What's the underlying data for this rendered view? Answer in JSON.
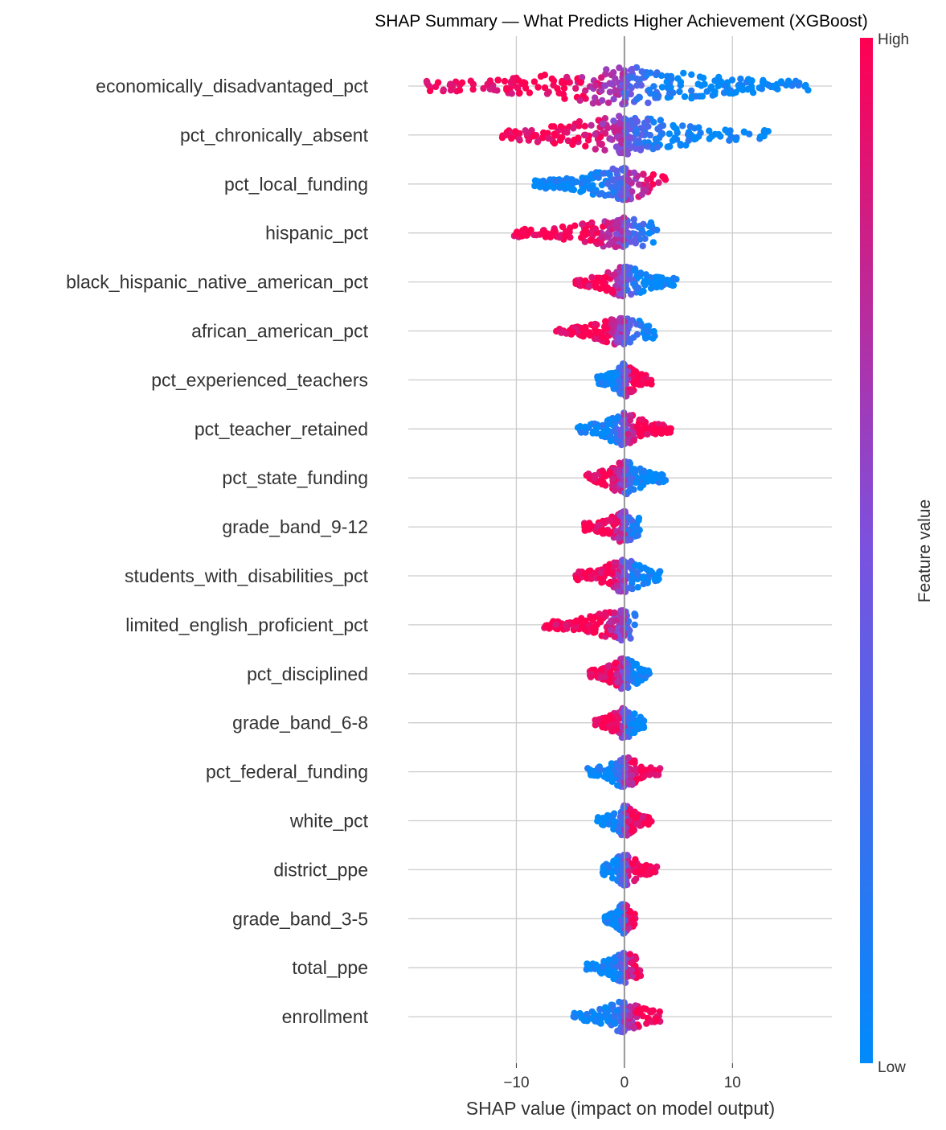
{
  "chart_data": {
    "type": "scatter",
    "subtype": "shap-beeswarm",
    "title": "SHAP Summary — What Predicts Higher Achievement (XGBoost)",
    "xlabel": "SHAP value (impact on model output)",
    "xlim": [
      -20,
      19.2
    ],
    "xticks": [
      -10,
      0,
      10
    ],
    "xtick_labels": [
      "−10",
      "0",
      "10"
    ],
    "grid": "horizontal per feature + vertical at ticks",
    "colorbar": {
      "label": "Feature value",
      "high_label": "High",
      "low_label": "Low",
      "colors": [
        "#008bfb",
        "#7a52e0",
        "#ff0052"
      ]
    },
    "features": [
      {
        "name": "economically_disadvantaged_pct",
        "min": -18.3,
        "max": 17.0,
        "spread": 1.0,
        "trend": -1,
        "n": 300
      },
      {
        "name": "pct_chronically_absent",
        "min": -11.3,
        "max": 13.3,
        "spread": 1.0,
        "trend": -1,
        "n": 260
      },
      {
        "name": "pct_local_funding",
        "min": -8.3,
        "max": 3.8,
        "spread": 0.85,
        "trend": 1,
        "n": 170
      },
      {
        "name": "hispanic_pct",
        "min": -10.2,
        "max": 3.0,
        "spread": 0.8,
        "trend": -1,
        "n": 170
      },
      {
        "name": "black_hispanic_native_american_pct",
        "min": -4.5,
        "max": 4.8,
        "spread": 0.8,
        "trend": -1,
        "n": 170
      },
      {
        "name": "african_american_pct",
        "min": -6.3,
        "max": 2.8,
        "spread": 0.75,
        "trend": -1,
        "n": 160
      },
      {
        "name": "pct_experienced_teachers",
        "min": -2.5,
        "max": 2.5,
        "spread": 0.85,
        "trend": 1,
        "n": 170
      },
      {
        "name": "pct_teacher_retained",
        "min": -4.3,
        "max": 4.3,
        "spread": 0.85,
        "trend": 1,
        "n": 170
      },
      {
        "name": "pct_state_funding",
        "min": -3.5,
        "max": 3.8,
        "spread": 0.85,
        "trend": -1,
        "n": 160
      },
      {
        "name": "grade_band_9-12",
        "min": -3.7,
        "max": 1.4,
        "spread": 0.8,
        "trend": -1,
        "n": 150
      },
      {
        "name": "students_with_disabilities_pct",
        "min": -4.5,
        "max": 3.3,
        "spread": 0.85,
        "trend": -1,
        "n": 160
      },
      {
        "name": "limited_english_proficient_pct",
        "min": -7.4,
        "max": 1.0,
        "spread": 0.8,
        "trend": -1,
        "n": 150
      },
      {
        "name": "pct_disciplined",
        "min": -3.2,
        "max": 2.3,
        "spread": 0.8,
        "trend": -1,
        "n": 150
      },
      {
        "name": "grade_band_6-8",
        "min": -2.7,
        "max": 1.8,
        "spread": 0.8,
        "trend": -1,
        "n": 150
      },
      {
        "name": "pct_federal_funding",
        "min": -3.4,
        "max": 3.3,
        "spread": 0.8,
        "trend": 1,
        "n": 150
      },
      {
        "name": "white_pct",
        "min": -2.5,
        "max": 2.5,
        "spread": 0.8,
        "trend": 1,
        "n": 150
      },
      {
        "name": "district_ppe",
        "min": -2.0,
        "max": 3.0,
        "spread": 0.8,
        "trend": 1,
        "n": 150
      },
      {
        "name": "grade_band_3-5",
        "min": -1.8,
        "max": 1.0,
        "spread": 0.8,
        "trend": 1,
        "n": 140
      },
      {
        "name": "total_ppe",
        "min": -3.5,
        "max": 1.5,
        "spread": 0.8,
        "trend": 1,
        "n": 140
      },
      {
        "name": "enrollment",
        "min": -4.7,
        "max": 3.3,
        "spread": 0.8,
        "trend": 1,
        "n": 150
      }
    ]
  }
}
